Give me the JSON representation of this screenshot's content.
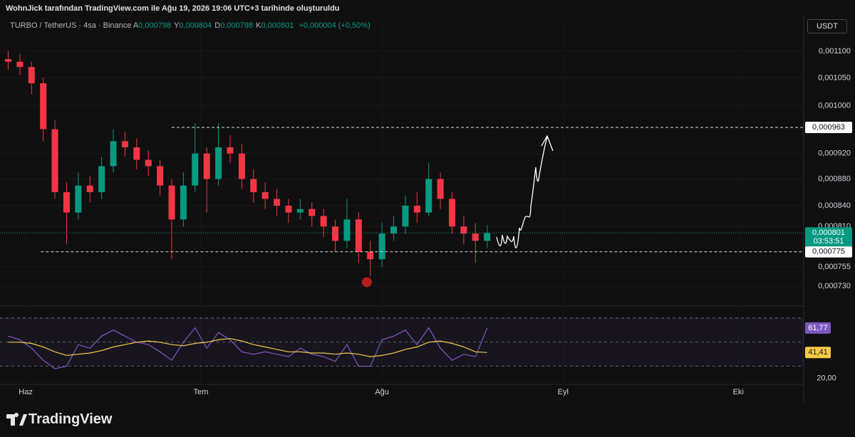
{
  "header": {
    "text": "WohnJick tarafından TradingView.com ile Ağu 19, 2026 19:06 UTC+3 tarihinde oluşturuldu"
  },
  "legend": {
    "symbol": "TURBO / TetherUS · 4sa · Binance",
    "ohlc": [
      {
        "key": "A",
        "value": "0,000798"
      },
      {
        "key": "Y",
        "value": "0,000804"
      },
      {
        "key": "D",
        "value": "0,000798"
      },
      {
        "key": "K",
        "value": "0,000801"
      }
    ],
    "change": "+0,000004 (+0,50%)"
  },
  "currency_button": "USDT",
  "brand": "TradingView",
  "chart_data": [
    {
      "type": "candlestick",
      "log_scale": true,
      "up_color": "#089981",
      "down_color": "#f23645",
      "x": [
        -3,
        -1,
        1,
        3,
        5,
        7,
        9,
        11,
        13,
        15,
        17,
        19,
        21,
        23,
        25,
        27,
        29,
        31,
        33,
        35,
        37,
        39,
        41,
        43,
        45,
        47,
        49,
        51,
        53,
        55,
        57,
        59,
        61,
        63,
        65,
        67,
        69,
        71,
        73,
        75,
        77,
        79
      ],
      "open": [
        0.001085,
        0.00108,
        0.00107,
        0.00104,
        0.00096,
        0.00086,
        0.00083,
        0.00087,
        0.00086,
        0.0009,
        0.00094,
        0.00093,
        0.00091,
        0.0009,
        0.00087,
        0.00082,
        0.00087,
        0.00092,
        0.00088,
        0.00093,
        0.00092,
        0.00088,
        0.00086,
        0.00085,
        0.00084,
        0.00083,
        0.000835,
        0.000825,
        0.00081,
        0.00079,
        0.00082,
        0.000775,
        0.000765,
        0.0008,
        0.00081,
        0.00084,
        0.00083,
        0.00088,
        0.00085,
        0.00081,
        0.0008,
        0.00079
      ],
      "high": [
        0.0011,
        0.001095,
        0.00108,
        0.00105,
        0.000975,
        0.000875,
        0.00089,
        0.000885,
        0.000915,
        0.00096,
        0.000955,
        0.000945,
        0.000925,
        0.00091,
        0.00088,
        0.00089,
        0.00097,
        0.00093,
        0.00097,
        0.00095,
        0.000935,
        0.000895,
        0.000875,
        0.000865,
        0.00085,
        0.00085,
        0.000845,
        0.000835,
        0.00082,
        0.00085,
        0.00083,
        0.00079,
        0.000815,
        0.000825,
        0.000855,
        0.00086,
        0.000905,
        0.00089,
        0.00086,
        0.000825,
        0.000815,
        0.000812
      ],
      "low": [
        0.001065,
        0.001055,
        0.00102,
        0.00094,
        0.00085,
        0.000785,
        0.00082,
        0.000845,
        0.00085,
        0.00089,
        0.000915,
        0.000895,
        0.000885,
        0.000855,
        0.000765,
        0.00081,
        0.00086,
        0.00083,
        0.00087,
        0.000905,
        0.000865,
        0.000845,
        0.000835,
        0.000825,
        0.000815,
        0.00082,
        0.00081,
        0.000795,
        0.000775,
        0.00078,
        0.00076,
        0.000742,
        0.000755,
        0.00079,
        0.0008,
        0.000815,
        0.000825,
        0.000835,
        0.0008,
        0.000785,
        0.00076,
        0.00078
      ],
      "close": [
        0.00108,
        0.00107,
        0.00104,
        0.00096,
        0.00086,
        0.00083,
        0.00087,
        0.00086,
        0.0009,
        0.00094,
        0.00093,
        0.00091,
        0.0009,
        0.00087,
        0.00082,
        0.00087,
        0.00092,
        0.00088,
        0.00093,
        0.00092,
        0.00088,
        0.00086,
        0.00085,
        0.00084,
        0.00083,
        0.000835,
        0.000825,
        0.00081,
        0.00079,
        0.00082,
        0.000775,
        0.000765,
        0.0008,
        0.00081,
        0.00084,
        0.00083,
        0.00088,
        0.00085,
        0.00081,
        0.0008,
        0.00079,
        0.000801
      ],
      "xlim": [
        -4.4,
        133.2
      ],
      "xticks": [
        {
          "value": 0,
          "label": "Haz"
        },
        {
          "value": 30,
          "label": "Tem"
        },
        {
          "value": 61,
          "label": "Ağu"
        },
        {
          "value": 92,
          "label": "Eyl"
        },
        {
          "value": 122,
          "label": "Eki"
        }
      ],
      "ylim": [
        0.000705,
        0.001166
      ],
      "yticks": [
        {
          "value": 0.0011,
          "label": "0,001100"
        },
        {
          "value": 0.00105,
          "label": "0,001050"
        },
        {
          "value": 0.001,
          "label": "0,001000"
        },
        {
          "value": 0.00092,
          "label": "0,000920"
        },
        {
          "value": 0.00088,
          "label": "0,000880"
        },
        {
          "value": 0.00084,
          "label": "0,000840"
        },
        {
          "value": 0.00081,
          "label": "0,000810"
        },
        {
          "value": 0.000755,
          "label": "0,000755"
        },
        {
          "value": 0.00073,
          "label": "0,000730"
        }
      ],
      "hlines": [
        {
          "value": 0.000963,
          "label": "0,000963",
          "from": 25
        },
        {
          "value": 0.000775,
          "label": "0,000775",
          "from": 2.6
        }
      ],
      "last_price": {
        "value": 0.000801,
        "label": "0,000801",
        "countdown": "03:53:51"
      },
      "marker": {
        "x": 58.4,
        "y": 0.000735,
        "color": "#b71c1c"
      }
    },
    {
      "type": "line",
      "ylim": [
        15,
        80
      ],
      "yticks": [
        {
          "value": 20,
          "label": "20,00"
        }
      ],
      "bands": [
        70,
        50,
        30
      ],
      "series": [
        {
          "name": "RSI",
          "color": "#7e57c2",
          "last_label": "61,77",
          "values": [
            55,
            52,
            45,
            35,
            28,
            30,
            48,
            45,
            55,
            60,
            55,
            50,
            48,
            42,
            35,
            50,
            62,
            45,
            58,
            52,
            42,
            40,
            42,
            40,
            38,
            45,
            40,
            38,
            34,
            48,
            30,
            30,
            52,
            55,
            60,
            48,
            62,
            45,
            35,
            40,
            38,
            61.77
          ]
        },
        {
          "name": "MA",
          "color": "#f7c948",
          "last_label": "41,41",
          "values": [
            50,
            50,
            49,
            46,
            42,
            39,
            40,
            41,
            43,
            46,
            48,
            50,
            51,
            50,
            48,
            47,
            49,
            50,
            52,
            53,
            51,
            48,
            46,
            44,
            42,
            42,
            41,
            41,
            40,
            41,
            40,
            38,
            39,
            41,
            44,
            46,
            50,
            51,
            49,
            46,
            42,
            41.41
          ]
        }
      ]
    }
  ]
}
